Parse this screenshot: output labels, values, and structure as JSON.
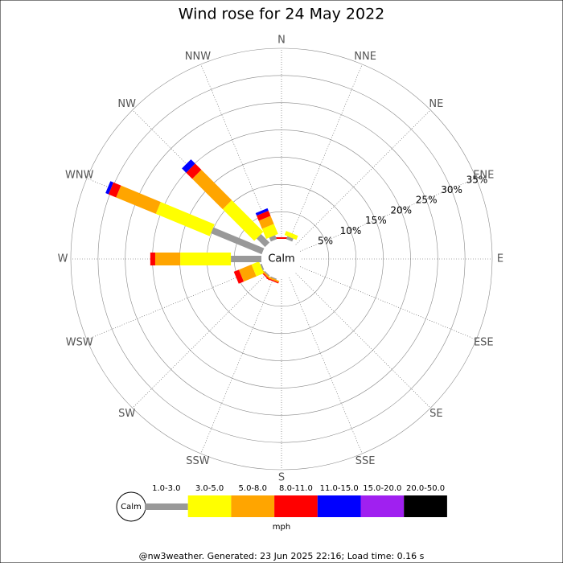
{
  "chart_data": {
    "type": "windrose",
    "title": "Wind rose for 24 May 2022",
    "categories": [
      "N",
      "NNE",
      "NE",
      "ENE",
      "E",
      "ESE",
      "SE",
      "SSE",
      "S",
      "SSW",
      "SW",
      "WSW",
      "W",
      "WNW",
      "NW",
      "NNW"
    ],
    "series": [
      {
        "name": "1.0-3.0",
        "color": "#999999",
        "values": [
          0,
          0.6,
          0,
          0,
          0,
          0,
          0,
          0,
          0,
          0.2,
          0.2,
          0.3,
          5.6,
          10.1,
          2.2,
          0.8
        ]
      },
      {
        "name": "3.0-5.0",
        "color": "#ffff00",
        "values": [
          0,
          0.8,
          0,
          0,
          0,
          0,
          0,
          0,
          0,
          0,
          0,
          1.5,
          9.3,
          10.7,
          8.2,
          2.0
        ]
      },
      {
        "name": "5.0-8.0",
        "color": "#ffa500",
        "values": [
          0,
          0,
          0,
          0,
          0,
          0,
          0,
          0,
          0,
          0.3,
          0.3,
          2.5,
          4.6,
          7.9,
          7.9,
          1.6
        ]
      },
      {
        "name": "8.0-11.0",
        "color": "#ff0000",
        "values": [
          0.3,
          0,
          0,
          0,
          0,
          0,
          0,
          0,
          0,
          0.2,
          0.2,
          1.0,
          0.9,
          1.5,
          1.6,
          1.0
        ]
      },
      {
        "name": "11.0-15.0",
        "color": "#0000ff",
        "values": [
          0,
          0,
          0,
          0,
          0,
          0,
          0,
          0,
          0,
          0,
          0,
          0,
          0,
          0.6,
          1.1,
          0.5
        ]
      },
      {
        "name": "15.0-20.0",
        "color": "#a020f0",
        "values": [
          0,
          0,
          0,
          0,
          0,
          0,
          0,
          0,
          0,
          0,
          0,
          0,
          0,
          0,
          0,
          0
        ]
      },
      {
        "name": "20.0-50.0",
        "color": "#000000",
        "values": [
          0,
          0,
          0,
          0,
          0,
          0,
          0,
          0,
          0,
          0,
          0,
          0,
          0,
          0,
          0,
          0
        ]
      }
    ],
    "rlim": [
      0,
      35
    ],
    "rticks": [
      {
        "value": 5,
        "label": "5%"
      },
      {
        "value": 10,
        "label": "10%"
      },
      {
        "value": 15,
        "label": "15%"
      },
      {
        "value": 20,
        "label": "20%"
      },
      {
        "value": 25,
        "label": "25%"
      },
      {
        "value": 30,
        "label": "30%"
      },
      {
        "value": 35,
        "label": "35%"
      }
    ],
    "calm_label": "Calm",
    "unit": "mph",
    "footer": "@nw3weather. Generated: 23 Jun 2025 22:16; Load time: 0.16 s"
  }
}
